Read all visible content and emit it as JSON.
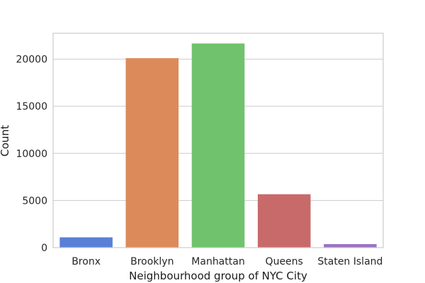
{
  "chart_data": {
    "type": "bar",
    "title": "",
    "xlabel": "Neighbourhood group of NYC City",
    "ylabel": "Count",
    "categories": [
      "Bronx",
      "Brooklyn",
      "Manhattan",
      "Queens",
      "Staten Island"
    ],
    "values": [
      1091,
      20104,
      21661,
      5666,
      373
    ],
    "colors": [
      "#5a7fd6",
      "#dc8a5a",
      "#71c26d",
      "#c96a6a",
      "#9a73c4"
    ],
    "ylim": [
      0,
      22746
    ],
    "yticks": [
      0,
      5000,
      10000,
      15000,
      20000
    ],
    "grid": true,
    "legend": "none"
  }
}
